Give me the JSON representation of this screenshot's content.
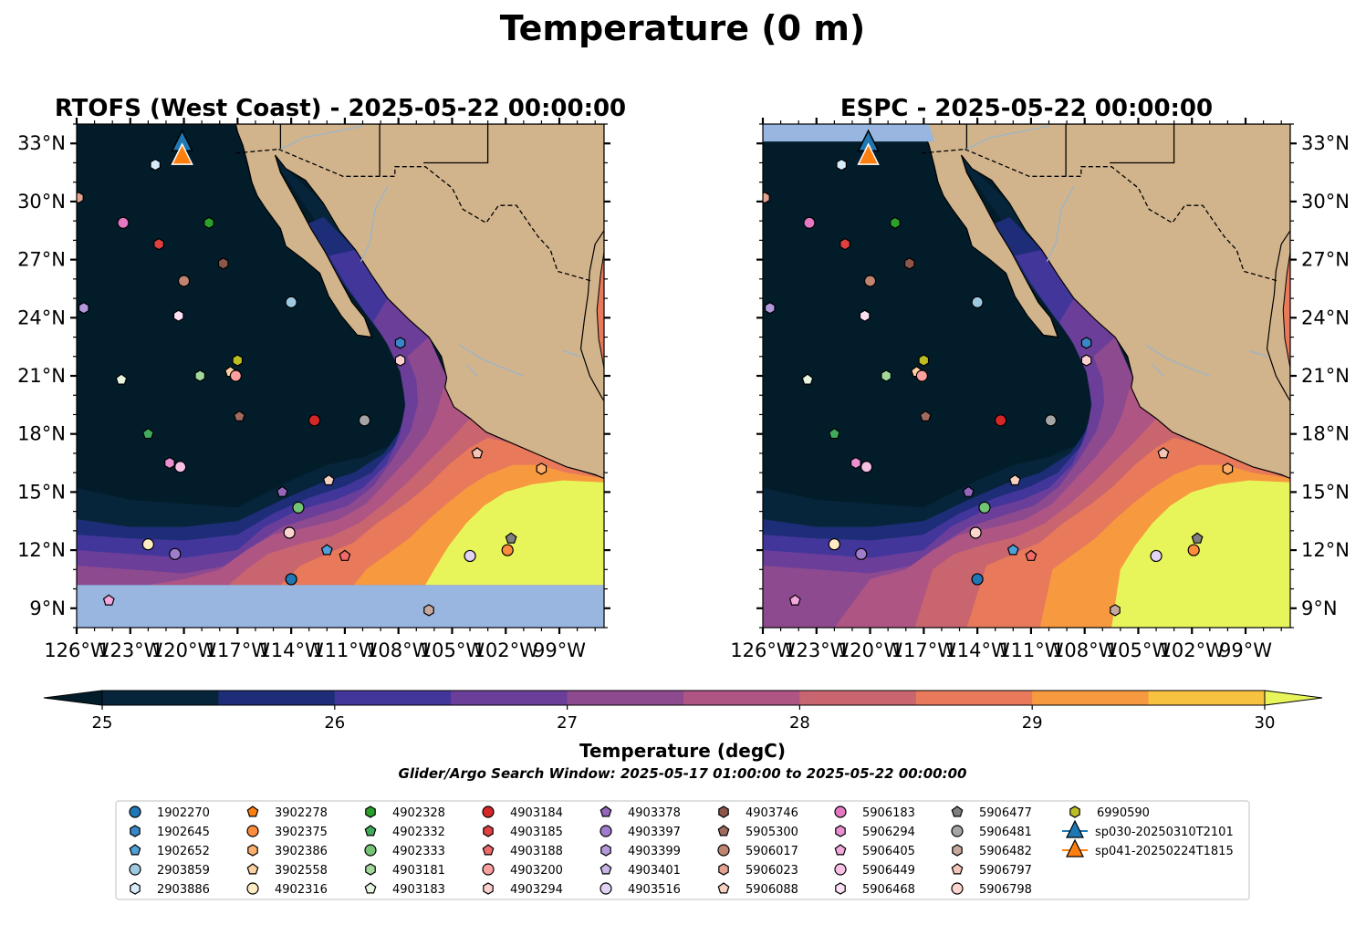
{
  "figure": {
    "title": "Temperature (0 m)",
    "search_window_note": "Glider/Argo Search Window: 2025-05-17 01:00:00 to 2025-05-22 00:00:00"
  },
  "chart_data": [
    {
      "type": "heatmap",
      "title": "RTOFS (West Coast) - 2025-05-22 00:00:00",
      "x_ticks": [
        "126°W",
        "123°W",
        "120°W",
        "117°W",
        "114°W",
        "111°W",
        "108°W",
        "105°W",
        "102°W",
        "99°W"
      ],
      "x_tick_values": [
        -126,
        -123,
        -120,
        -117,
        -114,
        -111,
        -108,
        -105,
        -102,
        -99
      ],
      "y_ticks": [
        "9°N",
        "12°N",
        "15°N",
        "18°N",
        "21°N",
        "24°N",
        "27°N",
        "30°N",
        "33°N"
      ],
      "y_tick_values": [
        9,
        12,
        15,
        18,
        21,
        24,
        27,
        30,
        33
      ],
      "xlim": [
        -126,
        -96.5
      ],
      "ylim": [
        8,
        34
      ],
      "y_tick_side": "left",
      "no_data_band_lat": [
        8,
        10.2
      ],
      "land_color": "#d2b48c",
      "no_data_color": "#98b6e0"
    },
    {
      "type": "heatmap",
      "title": "ESPC - 2025-05-22 00:00:00",
      "x_ticks": [
        "126°W",
        "123°W",
        "120°W",
        "117°W",
        "114°W",
        "111°W",
        "108°W",
        "105°W",
        "102°W",
        "99°W"
      ],
      "x_tick_values": [
        -126,
        -123,
        -120,
        -117,
        -114,
        -111,
        -108,
        -105,
        -102,
        -99
      ],
      "y_ticks": [
        "9°N",
        "12°N",
        "15°N",
        "18°N",
        "21°N",
        "24°N",
        "27°N",
        "30°N",
        "33°N"
      ],
      "y_tick_values": [
        9,
        12,
        15,
        18,
        21,
        24,
        27,
        30,
        33
      ],
      "xlim": [
        -126,
        -96.5
      ],
      "ylim": [
        8,
        34
      ],
      "y_tick_side": "right",
      "no_data_band_lat": [
        33.1,
        34
      ],
      "land_color": "#d2b48c",
      "no_data_color": "#98b6e0"
    }
  ],
  "colorbar": {
    "label": "Temperature (degC)",
    "min": 25,
    "max": 30,
    "levels": [
      25,
      25.5,
      26,
      26.5,
      27,
      27.5,
      28,
      28.5,
      29,
      29.5,
      30
    ],
    "ticks": [
      "25",
      "26",
      "27",
      "28",
      "29",
      "30"
    ],
    "tick_values": [
      25,
      26,
      27,
      28,
      29,
      30
    ],
    "extend": "both",
    "colors": [
      "#06253a",
      "#1e2d78",
      "#43369a",
      "#6b3f99",
      "#8e4a8f",
      "#ae5583",
      "#c9656f",
      "#e8795a",
      "#f79a3f",
      "#f7c240"
    ],
    "under_color": "#031c2a",
    "over_color": "#e8f55a"
  },
  "legend": {
    "entries": [
      {
        "label": "1902270",
        "marker": "circle",
        "color": "#1f77b4"
      },
      {
        "label": "1902645",
        "marker": "hexagon",
        "color": "#3a86c8"
      },
      {
        "label": "1902652",
        "marker": "pentagon",
        "color": "#4f9fd8"
      },
      {
        "label": "2903859",
        "marker": "circle",
        "color": "#9ecae1"
      },
      {
        "label": "2903886",
        "marker": "hexagon",
        "color": "#d6ecfa"
      },
      {
        "label": "3902278",
        "marker": "pentagon",
        "color": "#ff7f0e"
      },
      {
        "label": "3902375",
        "marker": "circle",
        "color": "#fd8d3c"
      },
      {
        "label": "3902386",
        "marker": "hexagon",
        "color": "#fdae6b"
      },
      {
        "label": "3902558",
        "marker": "pentagon",
        "color": "#fdd0a2"
      },
      {
        "label": "4902316",
        "marker": "circle",
        "color": "#feedc4"
      },
      {
        "label": "4902328",
        "marker": "hexagon",
        "color": "#2ca02c"
      },
      {
        "label": "4902332",
        "marker": "pentagon",
        "color": "#41ab5d"
      },
      {
        "label": "4902333",
        "marker": "circle",
        "color": "#74c476"
      },
      {
        "label": "4903181",
        "marker": "hexagon",
        "color": "#a1d99b"
      },
      {
        "label": "4903183",
        "marker": "pentagon",
        "color": "#e5f5e0"
      },
      {
        "label": "4903184",
        "marker": "circle",
        "color": "#d62728"
      },
      {
        "label": "4903185",
        "marker": "hexagon",
        "color": "#e04040"
      },
      {
        "label": "4903188",
        "marker": "pentagon",
        "color": "#f06a6a"
      },
      {
        "label": "4903200",
        "marker": "circle",
        "color": "#fc9f9f"
      },
      {
        "label": "4903294",
        "marker": "hexagon",
        "color": "#fdd0d0"
      },
      {
        "label": "4903378",
        "marker": "pentagon",
        "color": "#9467bd"
      },
      {
        "label": "4903397",
        "marker": "circle",
        "color": "#a07dcc"
      },
      {
        "label": "4903399",
        "marker": "hexagon",
        "color": "#b399db"
      },
      {
        "label": "4903401",
        "marker": "pentagon",
        "color": "#c8b4e6"
      },
      {
        "label": "4903516",
        "marker": "circle",
        "color": "#e0d3f4"
      },
      {
        "label": "4903746",
        "marker": "hexagon",
        "color": "#8c564b"
      },
      {
        "label": "5905300",
        "marker": "pentagon",
        "color": "#a06a5f"
      },
      {
        "label": "5906017",
        "marker": "circle",
        "color": "#c08470"
      },
      {
        "label": "5906023",
        "marker": "hexagon",
        "color": "#e2a390"
      },
      {
        "label": "5906088",
        "marker": "pentagon",
        "color": "#f6d1c2"
      },
      {
        "label": "5906183",
        "marker": "circle",
        "color": "#e377c2"
      },
      {
        "label": "5906294",
        "marker": "hexagon",
        "color": "#ea8fcf"
      },
      {
        "label": "5906405",
        "marker": "pentagon",
        "color": "#f2a8dc"
      },
      {
        "label": "5906449",
        "marker": "circle",
        "color": "#f7c1e6"
      },
      {
        "label": "5906468",
        "marker": "hexagon",
        "color": "#fde0f3"
      },
      {
        "label": "5906477",
        "marker": "pentagon",
        "color": "#7f7f7f"
      },
      {
        "label": "5906481",
        "marker": "circle",
        "color": "#a5a5a5"
      },
      {
        "label": "5906482",
        "marker": "hexagon",
        "color": "#c7a89c"
      },
      {
        "label": "5906797",
        "marker": "pentagon",
        "color": "#f5c6b8"
      },
      {
        "label": "5906798",
        "marker": "circle",
        "color": "#fcd5ce"
      },
      {
        "label": "6990590",
        "marker": "hexagon",
        "color": "#bcbd22"
      },
      {
        "label": "sp030-20250310T2101",
        "marker": "triangle-line",
        "color": "#1f77b4"
      },
      {
        "label": "sp041-20250224T1815",
        "marker": "triangle-line",
        "color": "#ff7f0e"
      }
    ]
  },
  "platform_positions": [
    {
      "id": "1902270",
      "lon": -114.0,
      "lat": 10.5
    },
    {
      "id": "1902645",
      "lon": -107.9,
      "lat": 22.7
    },
    {
      "id": "1902652",
      "lon": -112.0,
      "lat": 12.0
    },
    {
      "id": "2903859",
      "lon": -114.0,
      "lat": 24.8
    },
    {
      "id": "2903886",
      "lon": -121.6,
      "lat": 31.9
    },
    {
      "id": "3902375",
      "lon": -101.9,
      "lat": 12.0
    },
    {
      "id": "3902386",
      "lon": -100.0,
      "lat": 16.2
    },
    {
      "id": "3902558",
      "lon": -117.4,
      "lat": 21.2
    },
    {
      "id": "4902316",
      "lon": -122.0,
      "lat": 12.3
    },
    {
      "id": "4902328",
      "lon": -118.6,
      "lat": 28.9
    },
    {
      "id": "4902332",
      "lon": -122.0,
      "lat": 18.0
    },
    {
      "id": "4902333",
      "lon": -113.6,
      "lat": 14.2
    },
    {
      "id": "4903181",
      "lon": -119.1,
      "lat": 21.0
    },
    {
      "id": "4903183",
      "lon": -123.5,
      "lat": 20.8
    },
    {
      "id": "4903184",
      "lon": -112.7,
      "lat": 18.7
    },
    {
      "id": "4903185",
      "lon": -121.4,
      "lat": 27.8
    },
    {
      "id": "4903188",
      "lon": -111.0,
      "lat": 11.7
    },
    {
      "id": "4903200",
      "lon": -117.1,
      "lat": 21.0
    },
    {
      "id": "4903294",
      "lon": -107.9,
      "lat": 21.8
    },
    {
      "id": "4903378",
      "lon": -114.5,
      "lat": 15.0
    },
    {
      "id": "4903399",
      "lon": -125.6,
      "lat": 24.5
    },
    {
      "id": "4903516",
      "lon": -104.0,
      "lat": 11.7
    },
    {
      "id": "4903746",
      "lon": -117.8,
      "lat": 26.8
    },
    {
      "id": "5905300",
      "lon": -116.9,
      "lat": 18.9
    },
    {
      "id": "5906017",
      "lon": -120.0,
      "lat": 25.9
    },
    {
      "id": "5906023",
      "lon": -125.9,
      "lat": 30.2
    },
    {
      "id": "5906088",
      "lon": -111.9,
      "lat": 15.6
    },
    {
      "id": "5906183",
      "lon": -123.4,
      "lat": 28.9
    },
    {
      "id": "5906294",
      "lon": -120.8,
      "lat": 16.5
    },
    {
      "id": "5906405",
      "lon": -124.2,
      "lat": 9.4
    },
    {
      "id": "5906449",
      "lon": -120.2,
      "lat": 16.3
    },
    {
      "id": "5906468",
      "lon": -120.3,
      "lat": 24.1
    },
    {
      "id": "5906477",
      "lon": -101.7,
      "lat": 12.6
    },
    {
      "id": "5906481",
      "lon": -109.9,
      "lat": 18.7
    },
    {
      "id": "5906482",
      "lon": -106.3,
      "lat": 8.9
    },
    {
      "id": "5906797",
      "lon": -103.6,
      "lat": 17.0
    },
    {
      "id": "5906798",
      "lon": -114.1,
      "lat": 12.9
    },
    {
      "id": "6990590",
      "lon": -117.0,
      "lat": 21.8
    },
    {
      "id": "4903397",
      "lon": -120.5,
      "lat": 11.8
    }
  ],
  "glider_positions": [
    {
      "id": "sp030-20250310T2101",
      "lon": -120.1,
      "lat": 33.0
    },
    {
      "id": "sp041-20250224T1815",
      "lon": -120.1,
      "lat": 32.3
    }
  ]
}
